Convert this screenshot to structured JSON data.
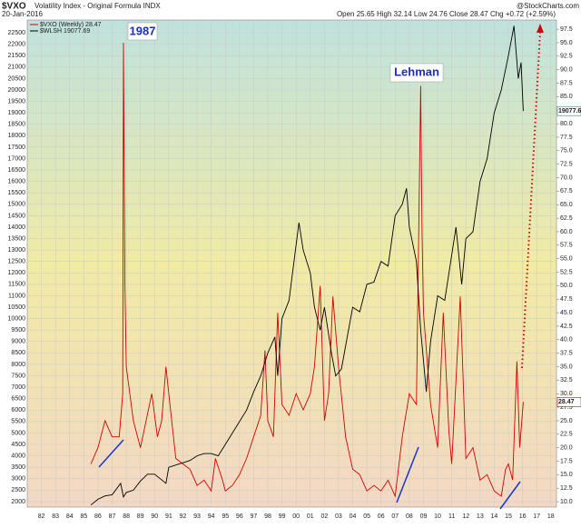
{
  "chart_data": {
    "type": "line",
    "title": "$VXO",
    "subtitle": "Volatility Index - Original Formula INDX",
    "date": "20-Jan-2016",
    "quote": "Open 25.65 High 32.14 Low 24.76 Close 28.47 Chg +0.72 (+2.59%)",
    "source": "@StockCharts.com",
    "annotations": [
      "1987",
      "Lehman"
    ],
    "grid": true,
    "xlim": [
      1981,
      2018.4
    ],
    "ylim": [
      1760,
      23060
    ],
    "y2lim": [
      9,
      99.2
    ],
    "xticks": [
      {
        "value": 1982,
        "label": "82"
      },
      {
        "value": 1983,
        "label": "83"
      },
      {
        "value": 1984,
        "label": "84"
      },
      {
        "value": 1985,
        "label": "85"
      },
      {
        "value": 1986,
        "label": "86"
      },
      {
        "value": 1987,
        "label": "87"
      },
      {
        "value": 1988,
        "label": "88"
      },
      {
        "value": 1989,
        "label": "89"
      },
      {
        "value": 1990,
        "label": "90"
      },
      {
        "value": 1991,
        "label": "91"
      },
      {
        "value": 1992,
        "label": "92"
      },
      {
        "value": 1993,
        "label": "93"
      },
      {
        "value": 1994,
        "label": "94"
      },
      {
        "value": 1995,
        "label": "95"
      },
      {
        "value": 1996,
        "label": "96"
      },
      {
        "value": 1997,
        "label": "97"
      },
      {
        "value": 1998,
        "label": "98"
      },
      {
        "value": 1999,
        "label": "99"
      },
      {
        "value": 2000,
        "label": "00"
      },
      {
        "value": 2001,
        "label": "01"
      },
      {
        "value": 2002,
        "label": "02"
      },
      {
        "value": 2003,
        "label": "03"
      },
      {
        "value": 2004,
        "label": "04"
      },
      {
        "value": 2005,
        "label": "05"
      },
      {
        "value": 2006,
        "label": "06"
      },
      {
        "value": 2007,
        "label": "07"
      },
      {
        "value": 2008,
        "label": "08"
      },
      {
        "value": 2009,
        "label": "09"
      },
      {
        "value": 2010,
        "label": "10"
      },
      {
        "value": 2011,
        "label": "11"
      },
      {
        "value": 2012,
        "label": "12"
      },
      {
        "value": 2013,
        "label": "13"
      },
      {
        "value": 2014,
        "label": "14"
      },
      {
        "value": 2015,
        "label": "15"
      },
      {
        "value": 2016,
        "label": "16"
      },
      {
        "value": 2017,
        "label": "17"
      },
      {
        "value": 2018,
        "label": "18"
      }
    ],
    "yticks": [
      2000,
      2500,
      3000,
      3500,
      4000,
      4500,
      5000,
      5500,
      6000,
      6500,
      7000,
      7500,
      8000,
      8500,
      9000,
      9500,
      10000,
      10500,
      11000,
      11500,
      12000,
      12500,
      13000,
      13500,
      14000,
      14500,
      15000,
      15500,
      16000,
      16500,
      17000,
      17500,
      18000,
      18500,
      19000,
      19500,
      20000,
      20500,
      21000,
      21500,
      22000,
      22500
    ],
    "y2ticks": [
      {
        "value": 10,
        "label": "10.0"
      },
      12.5,
      {
        "value": 15,
        "label": "15.0"
      },
      17.5,
      {
        "value": 20,
        "label": "20.0"
      },
      22.5,
      {
        "value": 25,
        "label": "25.0"
      },
      27.5,
      {
        "value": 30,
        "label": "30.0"
      },
      32.5,
      {
        "value": 35,
        "label": "35.0"
      },
      37.5,
      {
        "value": 40,
        "label": "40.0"
      },
      42.5,
      {
        "value": 45,
        "label": "45.0"
      },
      47.5,
      {
        "value": 50,
        "label": "50.0"
      },
      52.5,
      {
        "value": 55,
        "label": "55.0"
      },
      57.5,
      {
        "value": 60,
        "label": "60.0"
      },
      62.5,
      {
        "value": 65,
        "label": "65.0"
      },
      67.5,
      {
        "value": 70,
        "label": "70.0"
      },
      72.5,
      {
        "value": 75,
        "label": "75.0"
      },
      77.5,
      {
        "value": 80,
        "label": "80.0"
      },
      82.5,
      {
        "value": 85,
        "label": "85.0"
      },
      87.5,
      {
        "value": 90,
        "label": "90.0"
      },
      92.5,
      {
        "value": 95,
        "label": "95.0"
      },
      97.5
    ],
    "series": [
      {
        "name": "$VXO (Weekly) 28.47",
        "color": "#d40000",
        "axis": "y2",
        "x": [
          1985.5,
          1986,
          1986.5,
          1987,
          1987.5,
          1987.75,
          1987.8,
          1987.9,
          1988,
          1988.5,
          1989,
          1989.8,
          1990.2,
          1990.5,
          1990.8,
          1991,
          1991.5,
          1992,
          1992.5,
          1993,
          1993.5,
          1994,
          1994.3,
          1994.8,
          1995,
          1995.5,
          1996,
          1996.5,
          1997,
          1997.5,
          1997.8,
          1998,
          1998.4,
          1998.7,
          1999,
          1999.5,
          2000,
          2000.5,
          2001,
          2001.3,
          2001.7,
          2002,
          2002.3,
          2002.6,
          2003,
          2003.5,
          2004,
          2004.5,
          2005,
          2005.5,
          2006,
          2006.5,
          2007,
          2007.5,
          2008,
          2008.5,
          2008.8,
          2008.9,
          2009,
          2009.5,
          2010,
          2010.4,
          2010.8,
          2011,
          2011.6,
          2012,
          2012.5,
          2013,
          2013.5,
          2014,
          2014.5,
          2014.8,
          2015,
          2015.3,
          2015.6,
          2015.8,
          2016.05
        ],
        "values": [
          17,
          20,
          25,
          22,
          22,
          30,
          95,
          50,
          35,
          25,
          20,
          30,
          22,
          25,
          35,
          30,
          18,
          17,
          16,
          13,
          14,
          12,
          18,
          14,
          12,
          13,
          15,
          18,
          22,
          26,
          38,
          25,
          22,
          45,
          28,
          26,
          30,
          27,
          30,
          35,
          50,
          25,
          30,
          48,
          35,
          22,
          16,
          15,
          12,
          13,
          12,
          14,
          11,
          22,
          30,
          28,
          87,
          60,
          45,
          28,
          20,
          45,
          23,
          17,
          48,
          18,
          20,
          14,
          15,
          12,
          11,
          16,
          17,
          14,
          36,
          20,
          28.47
        ]
      },
      {
        "name": "$WLSH 19077.69",
        "color": "#000000",
        "x": [
          1985.5,
          1986,
          1986.5,
          1987,
          1987.6,
          1987.8,
          1988,
          1988.5,
          1989,
          1989.5,
          1990,
          1990.8,
          1991,
          1991.5,
          1992,
          1992.5,
          1993,
          1993.5,
          1994,
          1994.5,
          1995,
          1995.5,
          1996,
          1996.5,
          1997,
          1997.5,
          1998,
          1998.5,
          1998.7,
          1999,
          1999.5,
          2000.2,
          2000.5,
          2001,
          2001.3,
          2001.7,
          2002,
          2002.5,
          2002.8,
          2003.2,
          2003.7,
          2004,
          2004.5,
          2005,
          2005.5,
          2006,
          2006.5,
          2007,
          2007.5,
          2007.8,
          2008,
          2008.5,
          2008.8,
          2009.2,
          2009.5,
          2010,
          2010.5,
          2011.3,
          2011.7,
          2012,
          2012.5,
          2013,
          2013.5,
          2014,
          2014.5,
          2015,
          2015.4,
          2015.7,
          2015.9,
          2016.05
        ],
        "values": [
          1850,
          2100,
          2250,
          2300,
          2800,
          2200,
          2400,
          2500,
          2900,
          3200,
          3200,
          2800,
          3500,
          3600,
          3700,
          3800,
          4000,
          4100,
          4100,
          4000,
          4500,
          5000,
          5500,
          6000,
          6800,
          7500,
          8500,
          9200,
          7500,
          10000,
          10800,
          14200,
          13000,
          12000,
          10500,
          9500,
          10500,
          8500,
          7500,
          7800,
          9500,
          10500,
          10300,
          11500,
          11600,
          12500,
          12300,
          14500,
          15000,
          15700,
          14000,
          12500,
          9500,
          6800,
          9000,
          11000,
          10800,
          14000,
          11500,
          13500,
          13800,
          16000,
          17000,
          19000,
          20000,
          21500,
          22800,
          20500,
          21200,
          19077.69
        ]
      }
    ]
  }
}
